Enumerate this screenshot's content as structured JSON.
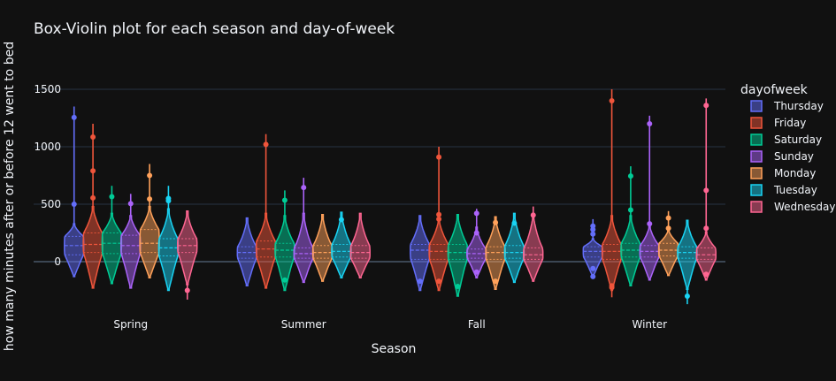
{
  "chart_data": {
    "type": "violin",
    "title": "Box-Violin plot for each season and day-of-week",
    "xlabel": "Season",
    "ylabel": "how many minutes after or before 12 went to bed",
    "categories": [
      "Spring",
      "Summer",
      "Fall",
      "Winter"
    ],
    "ylim": [
      -370,
      1550
    ],
    "yticks": [
      0,
      500,
      1000,
      1500
    ],
    "grid": true,
    "legend_title": "dayofweek",
    "legend_position": "right",
    "series": [
      {
        "name": "Thursday",
        "color": "#636efa",
        "violins": [
          {
            "min": -130,
            "q1": 60,
            "median": 140,
            "q3": 220,
            "max": 1350,
            "core": [
              -130,
              330
            ],
            "outliers": [
              1255,
              500
            ]
          },
          {
            "min": -210,
            "q1": 30,
            "median": 80,
            "q3": 130,
            "max": 380,
            "core": [
              -210,
              380
            ],
            "outliers": []
          },
          {
            "min": -250,
            "q1": 20,
            "median": 100,
            "q3": 150,
            "max": 400,
            "core": [
              -250,
              400
            ],
            "outliers": [
              -170
            ]
          },
          {
            "min": -130,
            "q1": 40,
            "median": 90,
            "q3": 130,
            "max": 370,
            "core": [
              -130,
              200
            ],
            "outliers": [
              310,
              280,
              240,
              -60,
              -130
            ]
          }
        ]
      },
      {
        "name": "Friday",
        "color": "#ef553b",
        "violins": [
          {
            "min": -230,
            "q1": 80,
            "median": 150,
            "q3": 250,
            "max": 1200,
            "core": [
              -230,
              480
            ],
            "outliers": [
              1085,
              790,
              555
            ]
          },
          {
            "min": -230,
            "q1": 40,
            "median": 110,
            "q3": 180,
            "max": 1110,
            "core": [
              -230,
              420
            ],
            "outliers": [
              1020
            ]
          },
          {
            "min": -250,
            "q1": 20,
            "median": 90,
            "q3": 150,
            "max": 1000,
            "core": [
              -250,
              380
            ],
            "outliers": [
              910,
              410,
              370,
              -170
            ]
          },
          {
            "min": -310,
            "q1": 20,
            "median": 90,
            "q3": 150,
            "max": 1500,
            "core": [
              -250,
              400
            ],
            "outliers": [
              1400,
              -210,
              -225
            ]
          }
        ]
      },
      {
        "name": "Saturday",
        "color": "#00cc96",
        "violins": [
          {
            "min": -190,
            "q1": 70,
            "median": 160,
            "q3": 250,
            "max": 660,
            "core": [
              -190,
              420
            ],
            "outliers": [
              565
            ]
          },
          {
            "min": -250,
            "q1": 40,
            "median": 100,
            "q3": 160,
            "max": 620,
            "core": [
              -250,
              400
            ],
            "outliers": [
              535,
              -160
            ]
          },
          {
            "min": -300,
            "q1": 20,
            "median": 80,
            "q3": 150,
            "max": 410,
            "core": [
              -300,
              410
            ],
            "outliers": [
              -215
            ]
          },
          {
            "min": -210,
            "q1": 40,
            "median": 100,
            "q3": 160,
            "max": 830,
            "core": [
              -210,
              400
            ],
            "outliers": [
              745,
              450
            ]
          }
        ]
      },
      {
        "name": "Sunday",
        "color": "#ab63fa",
        "violins": [
          {
            "min": -230,
            "q1": 70,
            "median": 140,
            "q3": 230,
            "max": 590,
            "core": [
              -230,
              400
            ],
            "outliers": [
              505
            ]
          },
          {
            "min": -180,
            "q1": 30,
            "median": 70,
            "q3": 120,
            "max": 730,
            "core": [
              -180,
              420
            ],
            "outliers": [
              645
            ]
          },
          {
            "min": -140,
            "q1": 30,
            "median": 70,
            "q3": 110,
            "max": 460,
            "core": [
              -140,
              300
            ],
            "outliers": [
              420,
              250,
              -90
            ]
          },
          {
            "min": -160,
            "q1": 40,
            "median": 90,
            "q3": 140,
            "max": 1270,
            "core": [
              -160,
              320
            ],
            "outliers": [
              1200,
              330
            ]
          }
        ]
      },
      {
        "name": "Monday",
        "color": "#ffa15a",
        "violins": [
          {
            "min": -140,
            "q1": 80,
            "median": 160,
            "q3": 280,
            "max": 850,
            "core": [
              -140,
              480
            ],
            "outliers": [
              750,
              545
            ]
          },
          {
            "min": -170,
            "q1": 30,
            "median": 80,
            "q3": 140,
            "max": 410,
            "core": [
              -170,
              410
            ],
            "outliers": []
          },
          {
            "min": -240,
            "q1": 20,
            "median": 80,
            "q3": 130,
            "max": 390,
            "core": [
              -240,
              390
            ],
            "outliers": [
              340,
              -170
            ]
          },
          {
            "min": -120,
            "q1": 50,
            "median": 100,
            "q3": 160,
            "max": 440,
            "core": [
              -120,
              280
            ],
            "outliers": [
              380,
              290
            ]
          }
        ]
      },
      {
        "name": "Tuesday",
        "color": "#19d3f3",
        "violins": [
          {
            "min": -250,
            "q1": 50,
            "median": 120,
            "q3": 200,
            "max": 660,
            "core": [
              -250,
              460
            ],
            "outliers": [
              550,
              530
            ]
          },
          {
            "min": -140,
            "q1": 40,
            "median": 90,
            "q3": 150,
            "max": 430,
            "core": [
              -140,
              430
            ],
            "outliers": [
              365
            ]
          },
          {
            "min": -180,
            "q1": 30,
            "median": 80,
            "q3": 140,
            "max": 420,
            "core": [
              -180,
              420
            ],
            "outliers": [
              335
            ]
          },
          {
            "min": -370,
            "q1": 30,
            "median": 80,
            "q3": 130,
            "max": 360,
            "core": [
              -240,
              360
            ],
            "outliers": [
              -300
            ]
          }
        ]
      },
      {
        "name": "Wednesday",
        "color": "#ff6692",
        "violins": [
          {
            "min": -330,
            "q1": 80,
            "median": 140,
            "q3": 200,
            "max": 440,
            "core": [
              -200,
              440
            ],
            "outliers": [
              -250
            ]
          },
          {
            "min": -140,
            "q1": 30,
            "median": 80,
            "q3": 140,
            "max": 420,
            "core": [
              -140,
              420
            ],
            "outliers": []
          },
          {
            "min": -170,
            "q1": 20,
            "median": 60,
            "q3": 120,
            "max": 480,
            "core": [
              -170,
              420
            ],
            "outliers": [
              405
            ]
          },
          {
            "min": -160,
            "q1": 20,
            "median": 60,
            "q3": 120,
            "max": 1420,
            "core": [
              -160,
              260
            ],
            "outliers": [
              1360,
              620,
              290,
              -110
            ]
          }
        ]
      }
    ]
  }
}
